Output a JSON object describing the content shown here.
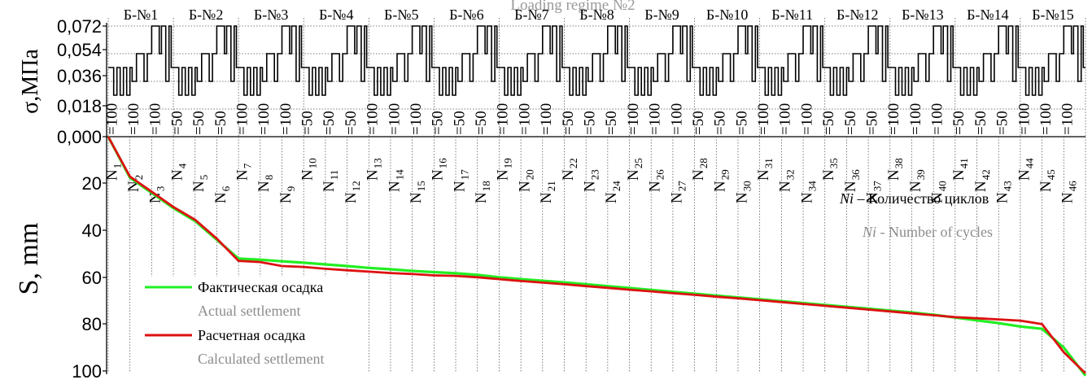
{
  "chart_data": [
    {
      "type": "line",
      "title": "Loading regime №2",
      "ylabel": "σ,МПа",
      "ylim": [
        0,
        0.072
      ],
      "yticks": [
        "0,000",
        "0,018",
        "0,036",
        "0,054",
        "0,072"
      ],
      "regime_labels": [
        "Б-№1",
        "Б-№2",
        "Б-№3",
        "Б-№4",
        "Б-№5",
        "Б-№6",
        "Б-№7",
        "Б-№8",
        "Б-№9",
        "Б-№10",
        "Б-№11",
        "Б-№12",
        "Б-№13",
        "Б-№14",
        "Б-№15"
      ],
      "block_stress_levels": [
        0.045,
        0.027,
        0.045,
        0.036,
        0.054,
        0.063,
        0.072
      ],
      "cycle_labels": [
        {
          "n": "N",
          "sub": "1",
          "val": "=100"
        },
        {
          "n": "N",
          "sub": "2",
          "val": "=100"
        },
        {
          "n": "N",
          "sub": "3",
          "val": "=100"
        },
        {
          "n": "N",
          "sub": "4",
          "val": "=50"
        },
        {
          "n": "N",
          "sub": "5",
          "val": "=50"
        },
        {
          "n": "N",
          "sub": "6",
          "val": "=50"
        },
        {
          "n": "N",
          "sub": "7",
          "val": "=100"
        },
        {
          "n": "N",
          "sub": "8",
          "val": "=100"
        },
        {
          "n": "N",
          "sub": "9",
          "val": "=100"
        },
        {
          "n": "N",
          "sub": "10",
          "val": "=50"
        },
        {
          "n": "N",
          "sub": "11",
          "val": "=50"
        },
        {
          "n": "N",
          "sub": "12",
          "val": "=50"
        },
        {
          "n": "N",
          "sub": "13",
          "val": "=100"
        },
        {
          "n": "N",
          "sub": "14",
          "val": "=100"
        },
        {
          "n": "N",
          "sub": "15",
          "val": "=100"
        },
        {
          "n": "N",
          "sub": "16",
          "val": "=50"
        },
        {
          "n": "N",
          "sub": "17",
          "val": "=50"
        },
        {
          "n": "N",
          "sub": "18",
          "val": "=50"
        },
        {
          "n": "N",
          "sub": "19",
          "val": "=100"
        },
        {
          "n": "N",
          "sub": "20",
          "val": "=100"
        },
        {
          "n": "N",
          "sub": "21",
          "val": "=100"
        },
        {
          "n": "N",
          "sub": "22",
          "val": "=50"
        },
        {
          "n": "N",
          "sub": "23",
          "val": "=50"
        },
        {
          "n": "N",
          "sub": "24",
          "val": "=50"
        },
        {
          "n": "N",
          "sub": "25",
          "val": "=100"
        },
        {
          "n": "N",
          "sub": "26",
          "val": "=100"
        },
        {
          "n": "N",
          "sub": "27",
          "val": "=100"
        },
        {
          "n": "N",
          "sub": "28",
          "val": "=50"
        },
        {
          "n": "N",
          "sub": "29",
          "val": "=50"
        },
        {
          "n": "N",
          "sub": "30",
          "val": "=50"
        },
        {
          "n": "N",
          "sub": "31",
          "val": "=100"
        },
        {
          "n": "N",
          "sub": "32",
          "val": "=100"
        },
        {
          "n": "N",
          "sub": "34",
          "val": "=100"
        },
        {
          "n": "N",
          "sub": "35",
          "val": "=50"
        },
        {
          "n": "N",
          "sub": "36",
          "val": "=50"
        },
        {
          "n": "N",
          "sub": "37",
          "val": "=50"
        },
        {
          "n": "N",
          "sub": "38",
          "val": "=100"
        },
        {
          "n": "N",
          "sub": "39",
          "val": "=100"
        },
        {
          "n": "N",
          "sub": "40",
          "val": "=100"
        },
        {
          "n": "N",
          "sub": "41",
          "val": "=50"
        },
        {
          "n": "N",
          "sub": "42",
          "val": "=50"
        },
        {
          "n": "N",
          "sub": "43",
          "val": "=50"
        },
        {
          "n": "N",
          "sub": "44",
          "val": "=100"
        },
        {
          "n": "N",
          "sub": "45",
          "val": "=100"
        },
        {
          "n": "N",
          "sub": "46",
          "val": "=100"
        }
      ],
      "grid": true
    },
    {
      "type": "line",
      "ylabel": "S, mm",
      "ylim": [
        100,
        0
      ],
      "yticks": [
        "20",
        "40",
        "60",
        "80",
        "100"
      ],
      "x_cycle_steps": [
        0,
        5,
        10,
        15,
        20,
        25,
        30,
        35,
        40,
        45
      ],
      "series": [
        {
          "name": "Фактическая осадка",
          "name_en": "Actual settlement",
          "color": "#22ee22",
          "values": [
            0,
            17.5,
            24,
            30.5,
            36,
            44,
            52,
            52.5,
            53.2,
            53.8,
            54.5,
            55.2,
            56,
            56.6,
            57.3,
            57.8,
            58.3,
            59,
            60,
            60.8,
            61.5,
            62.2,
            63,
            63.8,
            64.6,
            65.4,
            66.2,
            67,
            67.8,
            68.6,
            69.4,
            70.2,
            71,
            71.8,
            72.6,
            73.4,
            74.2,
            75,
            76,
            77.2,
            78.4,
            79.6,
            81,
            82,
            90,
            102
          ]
        },
        {
          "name": "Расчетная осадка",
          "name_en": "Calculated settlement",
          "color": "#dd1111",
          "values": [
            0,
            17,
            23.5,
            30,
            35.5,
            43.5,
            53,
            53.5,
            55.2,
            55.6,
            56.4,
            57,
            57.6,
            58.2,
            58.6,
            59.2,
            59.4,
            60,
            60.8,
            61.6,
            62.3,
            63,
            63.8,
            64.5,
            65.3,
            66,
            66.8,
            67.5,
            68.3,
            69,
            69.8,
            70.6,
            71.4,
            72.2,
            73,
            73.8,
            74.6,
            75.4,
            76.2,
            77,
            77.5,
            78,
            78.5,
            80,
            92,
            101
          ]
        }
      ],
      "annotation": {
        "var": "Ni",
        "ru": " – Количество циклов",
        "en": " - Number of cycles"
      },
      "grid": true
    }
  ],
  "colors": {
    "actual": "#22ee22",
    "calculated": "#dd1111",
    "english_text": "#8c8c8c"
  }
}
